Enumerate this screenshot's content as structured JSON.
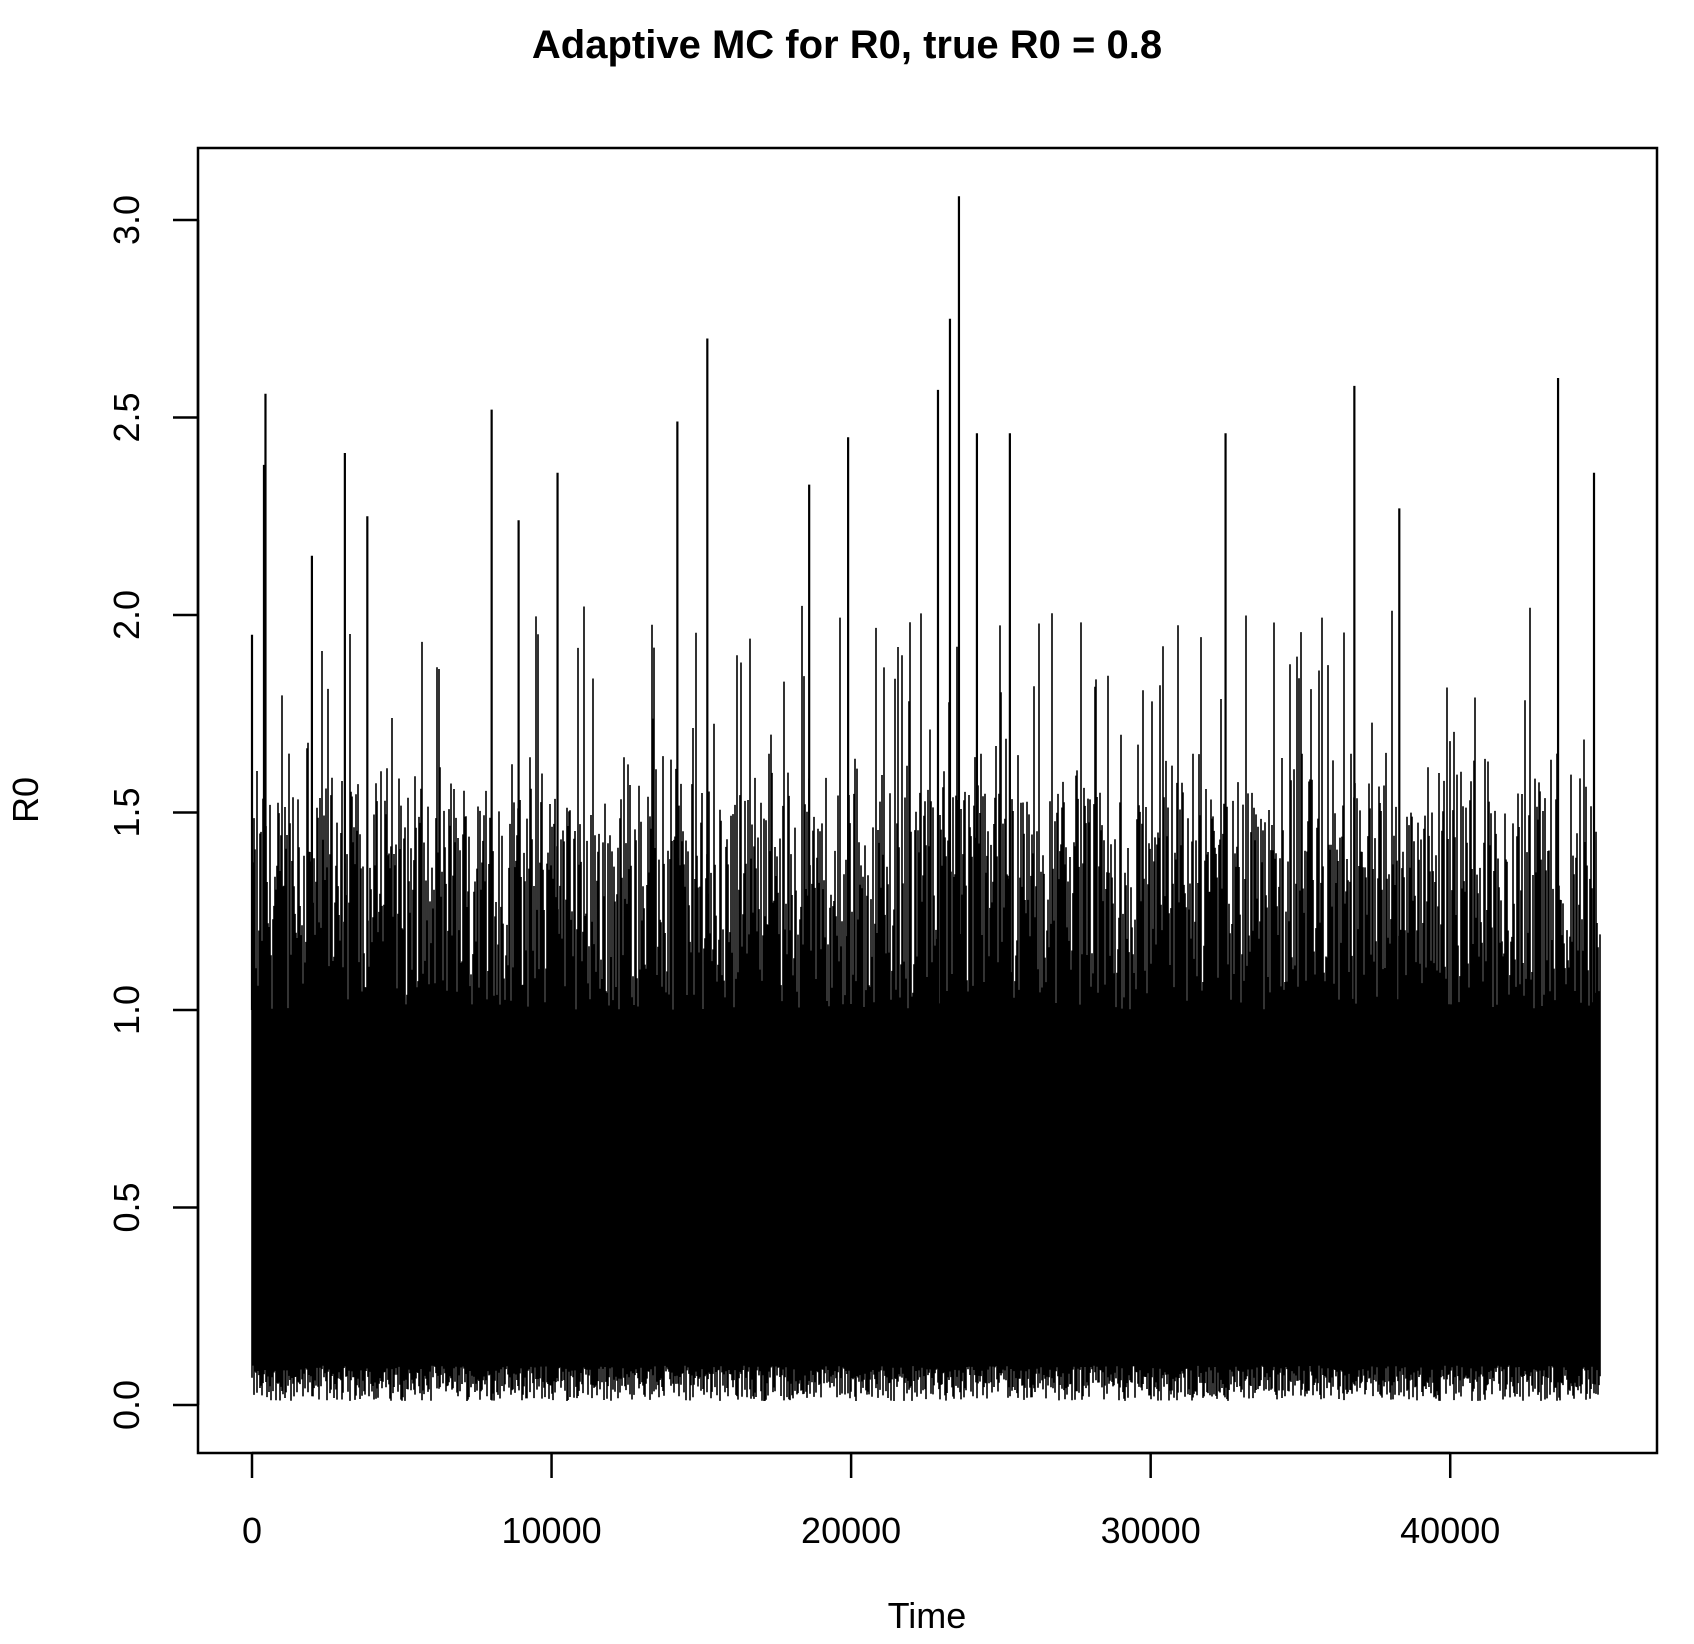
{
  "chart_data": {
    "type": "line",
    "title": "Adaptive MC for R0, true R0 =  0.8",
    "xlabel": "Time",
    "ylabel": "R0",
    "xlim": [
      0,
      45000
    ],
    "ylim": [
      0.0,
      3.0
    ],
    "x_ticks": [
      0,
      10000,
      20000,
      30000,
      40000
    ],
    "x_tick_labels": [
      "0",
      "10000",
      "20000",
      "30000",
      "40000"
    ],
    "y_ticks": [
      0.0,
      0.5,
      1.0,
      1.5,
      2.0,
      2.5,
      3.0
    ],
    "y_tick_labels": [
      "0.0",
      "0.5",
      "1.0",
      "1.5",
      "2.0",
      "2.5",
      "3.0"
    ],
    "grid": false,
    "legend": "none",
    "series": [
      {
        "color": "#000000",
        "n_points": 45000,
        "dense_band": [
          0.05,
          1.0
        ],
        "peaks": [
          {
            "x": 0,
            "y": 1.95
          },
          {
            "x": 400,
            "y": 2.38
          },
          {
            "x": 450,
            "y": 2.56
          },
          {
            "x": 2000,
            "y": 2.15
          },
          {
            "x": 3100,
            "y": 2.41
          },
          {
            "x": 3850,
            "y": 2.25
          },
          {
            "x": 8000,
            "y": 2.52
          },
          {
            "x": 8900,
            "y": 2.24
          },
          {
            "x": 10200,
            "y": 2.36
          },
          {
            "x": 14200,
            "y": 2.49
          },
          {
            "x": 15200,
            "y": 2.7
          },
          {
            "x": 18600,
            "y": 2.33
          },
          {
            "x": 19900,
            "y": 2.45
          },
          {
            "x": 22900,
            "y": 2.57
          },
          {
            "x": 23300,
            "y": 2.75
          },
          {
            "x": 23600,
            "y": 3.06
          },
          {
            "x": 24200,
            "y": 2.46
          },
          {
            "x": 25300,
            "y": 2.46
          },
          {
            "x": 32500,
            "y": 2.46
          },
          {
            "x": 36800,
            "y": 2.58
          },
          {
            "x": 38300,
            "y": 2.27
          },
          {
            "x": 43600,
            "y": 2.6
          },
          {
            "x": 44800,
            "y": 2.36
          }
        ]
      }
    ]
  }
}
